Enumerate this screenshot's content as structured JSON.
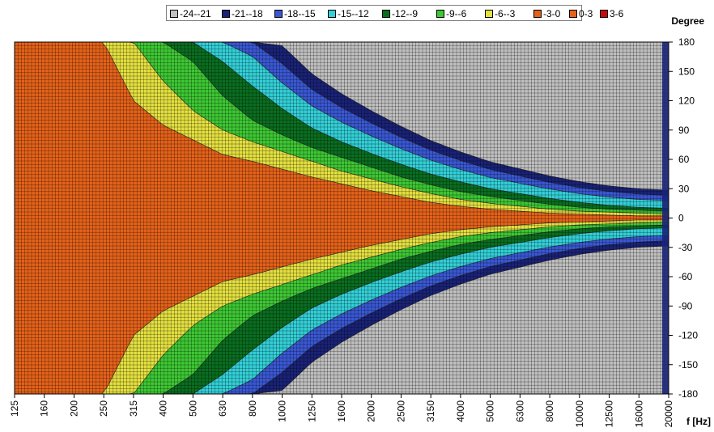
{
  "chart_data": {
    "type": "heatmap",
    "title": "",
    "xlabel": "f [Hz]",
    "ylabel": "Degree",
    "x_ticks": [
      "125",
      "160",
      "200",
      "250",
      "315",
      "400",
      "500",
      "630",
      "800",
      "1000",
      "1250",
      "1600",
      "2000",
      "2500",
      "3150",
      "4000",
      "5000",
      "6300",
      "8000",
      "10000",
      "12500",
      "16000",
      "20000"
    ],
    "y_ticks": [
      180,
      150,
      120,
      90,
      60,
      30,
      0,
      -30,
      -60,
      -90,
      -120,
      -150,
      -180
    ],
    "ylim": [
      -180,
      180
    ],
    "x_scale": "log",
    "grid": true,
    "legend_position": "top",
    "levels": [
      {
        "label": "-24--21",
        "min": -24,
        "max": -21,
        "color": "#c0c0c0"
      },
      {
        "label": "-21--18",
        "min": -21,
        "max": -18,
        "color": "#1a2378"
      },
      {
        "label": "-18--15",
        "min": -18,
        "max": -15,
        "color": "#3a58d4"
      },
      {
        "label": "-15--12",
        "min": -15,
        "max": -12,
        "color": "#33d0d8"
      },
      {
        "label": "-12--9",
        "min": -12,
        "max": -9,
        "color": "#0a6e20"
      },
      {
        "label": "-9--6",
        "min": -9,
        "max": -6,
        "color": "#3ec834"
      },
      {
        "label": "-6--3",
        "min": -6,
        "max": -3,
        "color": "#e4e040"
      },
      {
        "label": "-3-0",
        "min": -3,
        "max": 0,
        "color": "#e5621a"
      },
      {
        "label": "0-3",
        "min": 0,
        "max": 3,
        "color": "#e5621a"
      },
      {
        "label": "3-6",
        "min": 3,
        "max": 6,
        "color": "#c80a0a"
      }
    ],
    "contour_half_width_deg": {
      "description": "approximate half-angle where level boundary is crossed",
      "-3 dB": [
        180,
        180,
        180,
        180,
        120,
        95,
        80,
        65,
        58,
        50,
        42,
        35,
        28,
        22,
        16,
        12,
        9,
        7,
        5,
        4,
        3,
        2,
        2
      ],
      "-6 dB": [
        180,
        180,
        180,
        180,
        180,
        140,
        110,
        90,
        78,
        68,
        58,
        48,
        40,
        32,
        25,
        19,
        15,
        12,
        9,
        7,
        6,
        5,
        4
      ],
      "-9 dB": [
        180,
        180,
        180,
        180,
        180,
        180,
        160,
        125,
        100,
        85,
        72,
        62,
        52,
        42,
        34,
        27,
        22,
        18,
        14,
        11,
        9,
        8,
        7
      ],
      "-12 dB": [
        180,
        180,
        180,
        180,
        180,
        180,
        180,
        160,
        135,
        112,
        92,
        78,
        66,
        55,
        45,
        37,
        30,
        25,
        20,
        16,
        13,
        11,
        10
      ]
    }
  }
}
